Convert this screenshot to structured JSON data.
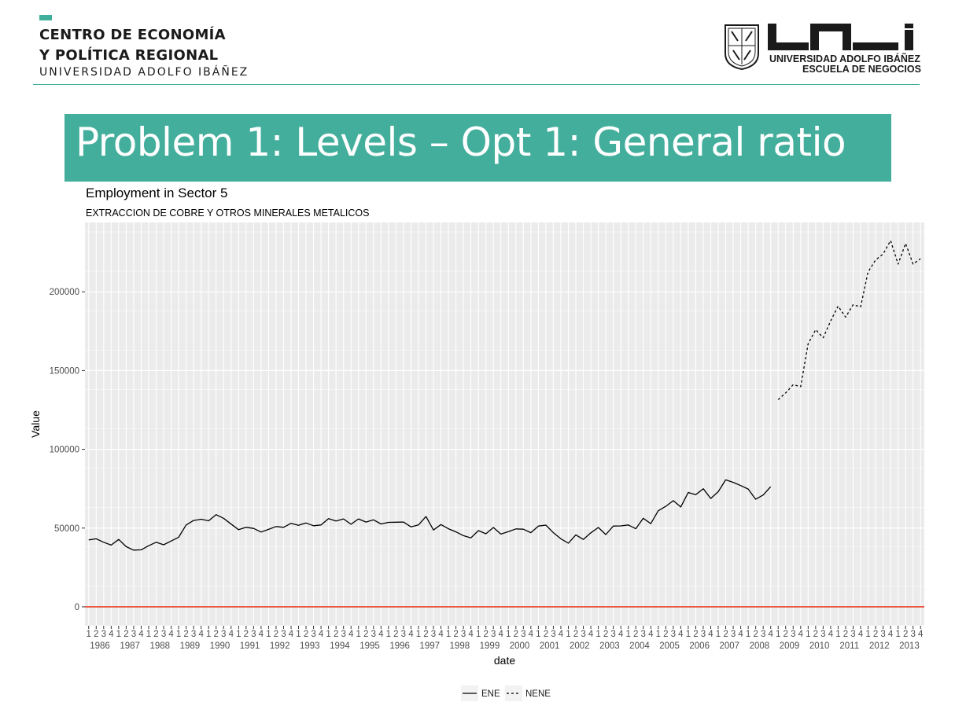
{
  "header": {
    "brand_line1": "CENTRO DE ECONOMÍA",
    "brand_line2": "Y POLÍTICA REGIONAL",
    "brand_line3": "UNIVERSIDAD ADOLFO IBÁÑEZ",
    "uai_name": "UNIVERSIDAD ADOLFO IBÁÑEZ",
    "uai_school": "ESCUELA DE NEGOCIOS",
    "uai_logo_text": "UAI"
  },
  "slide": {
    "title": "Problem 1: Levels – Opt 1: General ratio"
  },
  "colors": {
    "accent": "#43ae9c",
    "rule": "#3fae9a",
    "panel": "#ebebeb",
    "grid": "#ffffff",
    "zero_line": "#e8442a",
    "series": "#000000"
  },
  "chart_data": {
    "type": "line",
    "title": "Employment in Sector  5",
    "subtitle": "EXTRACCION DE COBRE Y OTROS MINERALES METALICOS",
    "xlabel": "date",
    "ylabel": "Value",
    "ylim": [
      -12000,
      244000
    ],
    "yticks": [
      0,
      50000,
      100000,
      150000,
      200000
    ],
    "ytick_labels": [
      "0",
      "50000",
      "100000",
      "150000",
      "200000"
    ],
    "x_quarter_labels": [
      "1",
      "2",
      "3",
      "4"
    ],
    "years": [
      "1986",
      "1987",
      "1988",
      "1989",
      "1990",
      "1991",
      "1992",
      "1993",
      "1994",
      "1995",
      "1996",
      "1997",
      "1998",
      "1999",
      "2000",
      "2001",
      "2002",
      "2003",
      "2004",
      "2005",
      "2006",
      "2007",
      "2008",
      "2009",
      "2010",
      "2011",
      "2012",
      "2013"
    ],
    "x_start": "1986-Q1",
    "x_end": "2013-Q4",
    "hline": {
      "y": 0,
      "color": "#e8442a"
    },
    "legend_position": "bottom",
    "series": [
      {
        "name": "ENE",
        "linestyle": "solid",
        "start": "1986-Q1",
        "values": [
          42500,
          43200,
          41000,
          39200,
          42800,
          38200,
          36000,
          36200,
          38800,
          41000,
          39400,
          41800,
          44200,
          52000,
          54800,
          55600,
          54600,
          58500,
          56200,
          52500,
          49000,
          50500,
          49800,
          47500,
          49200,
          51000,
          50500,
          53000,
          51800,
          53200,
          51500,
          52000,
          56000,
          54500,
          55800,
          52400,
          55800,
          53800,
          55200,
          52600,
          53600,
          53700,
          53800,
          50800,
          52000,
          57300,
          48800,
          52200,
          49600,
          47600,
          45200,
          43800,
          48400,
          46400,
          50400,
          46200,
          47800,
          49500,
          49300,
          47100,
          51300,
          51900,
          47100,
          43200,
          40400,
          45700,
          42800,
          47000,
          50400,
          45900,
          51300,
          51400,
          52000,
          49600,
          56200,
          52800,
          61000,
          63800,
          67400,
          63400,
          72600,
          71200,
          75000,
          68800,
          73100,
          80600,
          79000,
          77000,
          74800,
          68300,
          71000,
          76300
        ]
      },
      {
        "name": "NENE",
        "linestyle": "dashed",
        "start": "2009-Q1",
        "values": [
          131500,
          135800,
          141000,
          139800,
          167000,
          176000,
          170800,
          181400,
          190900,
          183900,
          191800,
          190400,
          212600,
          220200,
          224000,
          232500,
          217600,
          230700,
          217600,
          221000
        ]
      }
    ]
  }
}
